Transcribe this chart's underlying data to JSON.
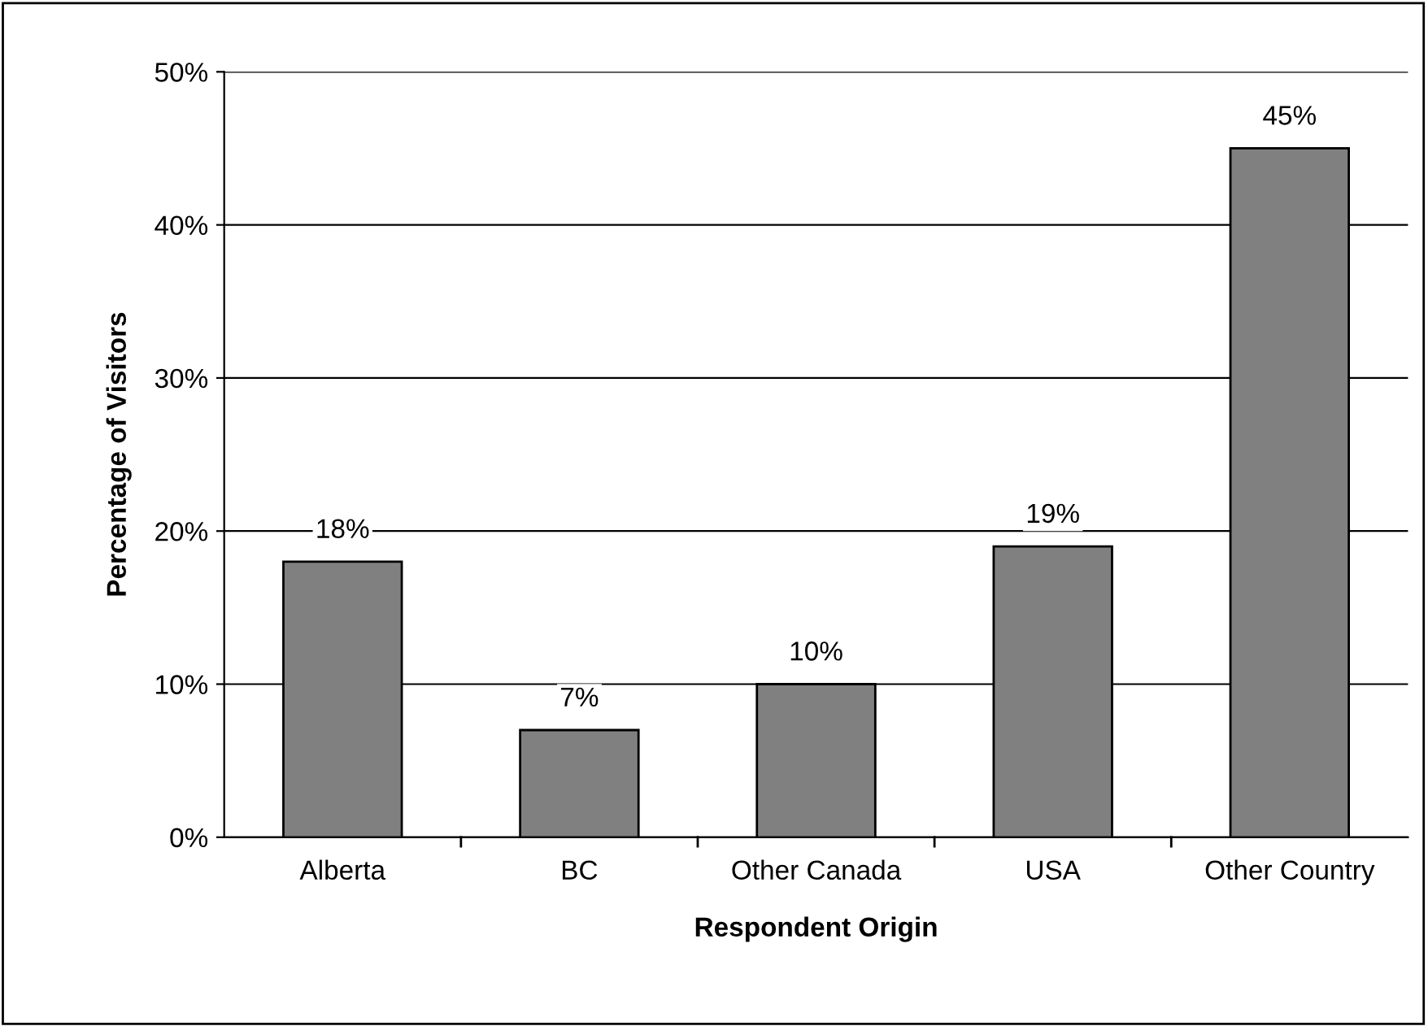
{
  "chart_data": {
    "type": "bar",
    "xlabel": "Respondent Origin",
    "ylabel": "Percentage of Visitors",
    "categories": [
      "Alberta",
      "BC",
      "Other Canada",
      "USA",
      "Other Country"
    ],
    "values": [
      18,
      7,
      10,
      19,
      45
    ],
    "value_labels": [
      "18%",
      "7%",
      "10%",
      "19%",
      "45%"
    ],
    "color": "#808080",
    "ylim": [
      0,
      50
    ],
    "yticks": [
      {
        "value": 0,
        "label": "0%"
      },
      {
        "value": 10,
        "label": "10%"
      },
      {
        "value": 20,
        "label": "20%"
      },
      {
        "value": 30,
        "label": "30%"
      },
      {
        "value": 40,
        "label": "40%"
      },
      {
        "value": 50,
        "label": "50%"
      }
    ],
    "grid": "y"
  }
}
